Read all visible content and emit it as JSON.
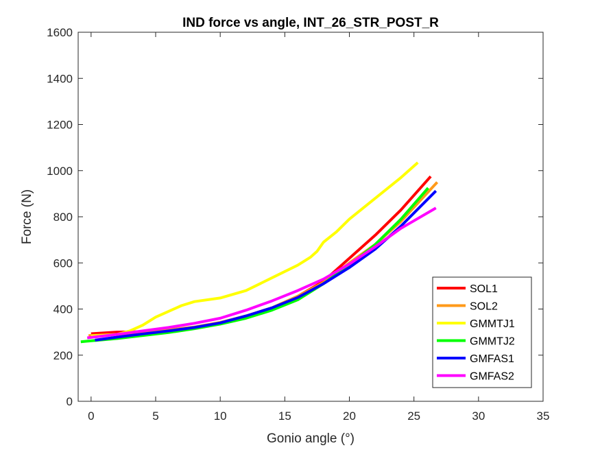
{
  "chart_data": {
    "type": "line",
    "title": "IND force vs angle, INT_26_STR_POST_R",
    "xlabel": "Gonio angle (°)",
    "ylabel": "Force (N)",
    "xlim": [
      -1,
      35
    ],
    "ylim": [
      0,
      1600
    ],
    "xticks": [
      0,
      5,
      10,
      15,
      20,
      25,
      30,
      35
    ],
    "yticks": [
      0,
      200,
      400,
      600,
      800,
      1000,
      1200,
      1400,
      1600
    ],
    "grid": false,
    "legend_position": "bottom-right",
    "series": [
      {
        "name": "SOL1",
        "color": "#ff0000",
        "x": [
          0,
          2,
          4,
          6,
          8,
          10,
          12,
          14,
          16,
          18,
          20,
          22,
          24,
          26.3
        ],
        "y": [
          293,
          300,
          302,
          308,
          320,
          340,
          370,
          405,
          455,
          520,
          620,
          720,
          830,
          975
        ]
      },
      {
        "name": "SOL2",
        "color": "#ff9a19",
        "x": [
          -0.2,
          2,
          4,
          6,
          8,
          10,
          12,
          14,
          16,
          18,
          20,
          22,
          24,
          26.8
        ],
        "y": [
          285,
          290,
          300,
          310,
          322,
          342,
          370,
          405,
          455,
          515,
          600,
          680,
          780,
          950
        ]
      },
      {
        "name": "GMMTJ1",
        "color": "#ffff00",
        "x": [
          0,
          2,
          3,
          4,
          5,
          6,
          7,
          8,
          10,
          12,
          14,
          16,
          17,
          17.5,
          18,
          19,
          20,
          22,
          24,
          25.3
        ],
        "y": [
          283,
          290,
          305,
          330,
          365,
          390,
          415,
          432,
          448,
          480,
          535,
          590,
          625,
          650,
          690,
          735,
          790,
          880,
          970,
          1035
        ]
      },
      {
        "name": "GMMTJ2",
        "color": "#00ff00",
        "x": [
          -0.8,
          2,
          4,
          6,
          8,
          10,
          12,
          14,
          16,
          18,
          20,
          22,
          24,
          26.1
        ],
        "y": [
          258,
          272,
          285,
          298,
          315,
          335,
          360,
          395,
          440,
          510,
          590,
          680,
          790,
          925
        ]
      },
      {
        "name": "GMFAS1",
        "color": "#0000ff",
        "x": [
          0.3,
          2,
          4,
          6,
          8,
          10,
          12,
          14,
          16,
          18,
          20,
          22,
          24,
          26.7
        ],
        "y": [
          265,
          278,
          292,
          305,
          320,
          340,
          370,
          405,
          450,
          510,
          580,
          660,
          760,
          912
        ]
      },
      {
        "name": "GMFAS2",
        "color": "#ff00ff",
        "x": [
          -0.3,
          2,
          4,
          6,
          8,
          10,
          12,
          14,
          16,
          18,
          20,
          22,
          24,
          26.7
        ],
        "y": [
          275,
          290,
          305,
          320,
          338,
          360,
          395,
          435,
          480,
          530,
          595,
          670,
          750,
          838
        ]
      }
    ]
  }
}
